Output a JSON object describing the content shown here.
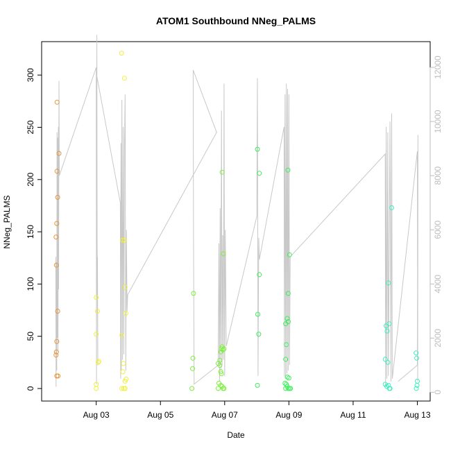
{
  "chart_data": {
    "type": "scatter",
    "title": "ATOM1 Southbound NNeg_PALMS",
    "xlabel": "Date",
    "ylabel": "NNeg_PALMS",
    "xlim": [
      1.3,
      13.4
    ],
    "ylim": [
      -12,
      332
    ],
    "x_ticks": [
      {
        "value": 3,
        "label": "Aug 03"
      },
      {
        "value": 5,
        "label": "Aug 05"
      },
      {
        "value": 7,
        "label": "Aug 07"
      },
      {
        "value": 9,
        "label": "Aug 09"
      },
      {
        "value": 11,
        "label": "Aug 11"
      },
      {
        "value": 13,
        "label": "Aug 13"
      }
    ],
    "y_ticks": [
      0,
      50,
      100,
      150,
      200,
      250,
      300
    ],
    "y2lim": [
      -325,
      12950
    ],
    "y2_ticks": [
      0,
      2000,
      4000,
      6000,
      8000,
      10000,
      12000
    ],
    "y2_color": "#bdbdbd",
    "grid": false,
    "series": [
      {
        "color": "#e8953a",
        "points": [
          [
            1.78,
            274
          ],
          [
            1.78,
            208
          ],
          [
            1.8,
            183
          ],
          [
            1.77,
            158
          ],
          [
            1.75,
            145
          ],
          [
            1.76,
            118
          ],
          [
            1.8,
            74
          ],
          [
            1.77,
            45
          ],
          [
            1.76,
            35
          ],
          [
            1.75,
            32
          ],
          [
            1.77,
            12
          ],
          [
            1.81,
            12
          ],
          [
            1.84,
            225
          ]
        ]
      },
      {
        "color": "#f0f03a",
        "points": [
          [
            3.0,
            87
          ],
          [
            3.04,
            74
          ],
          [
            3.0,
            52
          ],
          [
            3.08,
            26
          ],
          [
            3.06,
            25
          ],
          [
            3.0,
            4
          ],
          [
            3.0,
            0
          ],
          [
            3.79,
            321
          ],
          [
            3.88,
            297
          ],
          [
            3.82,
            142
          ],
          [
            3.88,
            142
          ],
          [
            3.9,
            97
          ],
          [
            3.92,
            72
          ],
          [
            3.8,
            51
          ],
          [
            3.85,
            24
          ],
          [
            3.83,
            16
          ],
          [
            3.93,
            9
          ],
          [
            3.9,
            7
          ],
          [
            3.8,
            0
          ],
          [
            3.86,
            0
          ],
          [
            3.9,
            0
          ]
        ]
      },
      {
        "color": "#7cf03a",
        "points": [
          [
            6.03,
            91
          ],
          [
            6.01,
            29
          ],
          [
            6.0,
            19
          ],
          [
            5.98,
            0
          ],
          [
            6.8,
            24
          ],
          [
            6.85,
            22
          ],
          [
            6.88,
            35
          ],
          [
            6.9,
            38
          ],
          [
            6.92,
            40
          ],
          [
            6.95,
            37
          ],
          [
            6.98,
            38
          ],
          [
            6.85,
            27
          ],
          [
            6.88,
            16
          ],
          [
            6.9,
            14
          ],
          [
            6.82,
            5
          ],
          [
            6.88,
            3
          ],
          [
            6.92,
            2
          ],
          [
            6.95,
            0
          ],
          [
            6.98,
            0
          ],
          [
            6.8,
            0
          ],
          [
            6.92,
            207
          ],
          [
            6.96,
            129
          ]
        ]
      },
      {
        "color": "#3af05a",
        "points": [
          [
            8.02,
            229
          ],
          [
            8.08,
            206
          ],
          [
            8.08,
            109
          ],
          [
            8.03,
            71
          ],
          [
            8.06,
            52
          ],
          [
            8.02,
            3
          ],
          [
            8.9,
            62
          ],
          [
            8.95,
            67
          ],
          [
            8.98,
            64
          ],
          [
            8.92,
            42
          ],
          [
            8.9,
            28
          ],
          [
            8.95,
            11
          ],
          [
            9.0,
            10
          ],
          [
            8.88,
            5
          ],
          [
            8.92,
            4
          ],
          [
            8.95,
            2
          ],
          [
            8.98,
            0
          ],
          [
            9.02,
            0
          ],
          [
            9.05,
            0
          ],
          [
            8.9,
            0
          ],
          [
            8.97,
            209
          ],
          [
            9.02,
            128
          ],
          [
            8.98,
            91
          ]
        ]
      },
      {
        "color": "#3af0c0",
        "points": [
          [
            12.03,
            60
          ],
          [
            12.06,
            55
          ],
          [
            12.12,
            62
          ],
          [
            12.0,
            28
          ],
          [
            12.08,
            25
          ],
          [
            12.1,
            101
          ],
          [
            12.2,
            173
          ],
          [
            12.0,
            4
          ],
          [
            12.05,
            2
          ],
          [
            12.1,
            3
          ],
          [
            12.13,
            0
          ],
          [
            12.15,
            0
          ],
          [
            12.96,
            34
          ],
          [
            12.98,
            29
          ],
          [
            13.0,
            7
          ],
          [
            12.99,
            3
          ],
          [
            12.97,
            0
          ]
        ]
      }
    ],
    "line_series": {
      "color": "#c8c8c8",
      "axis": "right",
      "points": [
        [
          1.74,
          5000
        ],
        [
          1.75,
          200
        ],
        [
          1.76,
          4800
        ],
        [
          1.77,
          800
        ],
        [
          1.78,
          9600
        ],
        [
          1.79,
          2000
        ],
        [
          1.8,
          9400
        ],
        [
          1.81,
          1500
        ],
        [
          1.82,
          9800
        ],
        [
          1.83,
          3800
        ],
        [
          1.84,
          11500
        ],
        [
          1.85,
          8000
        ],
        [
          3.0,
          12000
        ],
        [
          3.01,
          300
        ],
        [
          3.02,
          13200
        ],
        [
          3.03,
          3600
        ],
        [
          3.04,
          5000
        ],
        [
          3.05,
          1000
        ],
        [
          3.0,
          11800
        ],
        [
          3.75,
          7000
        ],
        [
          3.76,
          500
        ],
        [
          3.77,
          9200
        ],
        [
          3.78,
          800
        ],
        [
          3.8,
          10800
        ],
        [
          3.82,
          1200
        ],
        [
          3.84,
          9800
        ],
        [
          3.86,
          1400
        ],
        [
          3.88,
          9000
        ],
        [
          3.9,
          11000
        ],
        [
          3.92,
          800
        ],
        [
          3.94,
          6000
        ],
        [
          3.96,
          3000
        ],
        [
          3.98,
          3600
        ],
        [
          6.75,
          9600
        ],
        [
          6.02,
          11900
        ],
        [
          6.03,
          5700
        ],
        [
          6.05,
          300
        ],
        [
          6.8,
          1000
        ],
        [
          6.82,
          5500
        ],
        [
          6.84,
          400
        ],
        [
          6.86,
          6800
        ],
        [
          6.88,
          800
        ],
        [
          6.9,
          10400
        ],
        [
          6.92,
          1000
        ],
        [
          6.94,
          5800
        ],
        [
          6.96,
          1200
        ],
        [
          6.98,
          11400
        ],
        [
          7.0,
          600
        ],
        [
          7.02,
          6000
        ],
        [
          7.05,
          1700
        ],
        [
          8.0,
          6500
        ],
        [
          8.02,
          11600
        ],
        [
          8.04,
          600
        ],
        [
          8.06,
          5700
        ],
        [
          8.08,
          4900
        ],
        [
          8.85,
          9800
        ],
        [
          8.86,
          600
        ],
        [
          8.88,
          11000
        ],
        [
          8.9,
          500
        ],
        [
          8.92,
          11400
        ],
        [
          8.94,
          700
        ],
        [
          8.96,
          11200
        ],
        [
          8.98,
          800
        ],
        [
          9.0,
          11000
        ],
        [
          9.02,
          1000
        ],
        [
          9.04,
          5000
        ],
        [
          12.0,
          8800
        ],
        [
          12.01,
          200
        ],
        [
          12.03,
          9800
        ],
        [
          12.05,
          500
        ],
        [
          12.08,
          9600
        ],
        [
          12.1,
          600
        ],
        [
          12.15,
          10000
        ],
        [
          12.18,
          400
        ],
        [
          12.2,
          10300
        ],
        [
          12.22,
          500
        ],
        [
          13.0,
          8900
        ],
        [
          13.01,
          400
        ],
        [
          13.02,
          9500
        ],
        [
          13.0,
          1000
        ],
        [
          12.4,
          400
        ]
      ]
    }
  }
}
